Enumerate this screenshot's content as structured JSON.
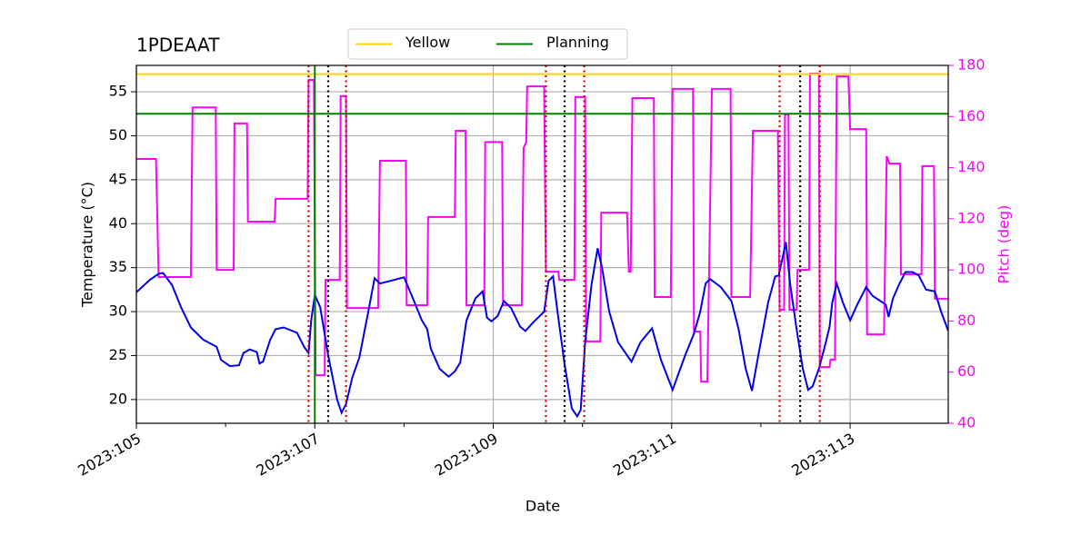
{
  "chart_data": {
    "type": "line",
    "title": "1PDEAAT",
    "xlabel": "Date",
    "ylabel": "Temperature (°C)",
    "y2label": "Pitch (deg)",
    "xlim": [
      105,
      114.1
    ],
    "xticks": [
      {
        "value": 105,
        "label": "2023:105"
      },
      {
        "value": 107,
        "label": "2023:107"
      },
      {
        "value": 109,
        "label": "2023:109"
      },
      {
        "value": 111,
        "label": "2023:111"
      },
      {
        "value": 113,
        "label": "2023:113"
      }
    ],
    "xminorticks": [
      106,
      108,
      110,
      112
    ],
    "ylim": [
      17.3,
      58
    ],
    "yticks": [
      20,
      25,
      30,
      35,
      40,
      45,
      50,
      55
    ],
    "y2lim": [
      40,
      180
    ],
    "y2ticks": [
      40,
      60,
      80,
      100,
      120,
      140,
      160,
      180
    ],
    "y2color": "#ff00ff",
    "grid": true,
    "legend": "upper center",
    "hlines": [
      {
        "name": "Yellow",
        "color": "#ffd700",
        "y": 57
      },
      {
        "name": "Planning",
        "color": "#008000",
        "y": 52.5
      }
    ],
    "vlines": [
      {
        "x": 106.93,
        "color": "#e00000",
        "style": "dotted"
      },
      {
        "x": 107.35,
        "color": "#e00000",
        "style": "dotted"
      },
      {
        "x": 109.59,
        "color": "#e00000",
        "style": "dotted"
      },
      {
        "x": 110.02,
        "color": "#e00000",
        "style": "dotted"
      },
      {
        "x": 112.21,
        "color": "#e00000",
        "style": "dotted"
      },
      {
        "x": 112.66,
        "color": "#e00000",
        "style": "dotted"
      },
      {
        "x": 107.15,
        "color": "#000000",
        "style": "dotted"
      },
      {
        "x": 109.8,
        "color": "#000000",
        "style": "dotted"
      },
      {
        "x": 112.44,
        "color": "#000000",
        "style": "dotted"
      },
      {
        "x": 107.0,
        "color": "#008000",
        "style": "solid"
      }
    ],
    "series": [
      {
        "color": "#ff00ff",
        "axis": "y2",
        "x": [
          105.0,
          105.22,
          105.25,
          105.61,
          105.63,
          105.89,
          105.9,
          106.09,
          106.1,
          106.24,
          106.25,
          106.55,
          106.56,
          106.92,
          106.93,
          106.99,
          107.01,
          107.11,
          107.12,
          107.28,
          107.29,
          107.35,
          107.36,
          107.71,
          107.73,
          108.02,
          108.03,
          108.26,
          108.27,
          108.57,
          108.58,
          108.69,
          108.7,
          108.9,
          108.91,
          109.1,
          109.11,
          109.32,
          109.34,
          109.37,
          109.38,
          109.57,
          109.59,
          109.73,
          109.74,
          109.91,
          109.92,
          110.03,
          110.04,
          110.2,
          110.21,
          110.5,
          110.52,
          110.54,
          110.56,
          110.8,
          110.81,
          110.99,
          111.01,
          111.24,
          111.25,
          111.32,
          111.33,
          111.4,
          111.42,
          111.45,
          111.66,
          111.67,
          111.88,
          111.91,
          112.19,
          112.21,
          112.26,
          112.27,
          112.31,
          112.32,
          112.4,
          112.41,
          112.54,
          112.55,
          112.65,
          112.66,
          112.77,
          112.78,
          112.83,
          112.85,
          112.98,
          113.0,
          113.18,
          113.19,
          113.38,
          113.41,
          113.44,
          113.56,
          113.57,
          113.8,
          113.81,
          113.94,
          113.95,
          114.1
        ],
        "values": [
          143.4,
          143.4,
          97.2,
          97.2,
          163.6,
          163.6,
          100,
          100,
          157.3,
          157.3,
          118.9,
          118.9,
          127.8,
          127.8,
          174.3,
          174.3,
          58.8,
          58.8,
          96.1,
          96.1,
          168,
          168,
          85.1,
          85.1,
          142.7,
          142.7,
          86.2,
          86.2,
          120.7,
          120.7,
          154.4,
          154.4,
          86.2,
          86.2,
          150,
          150,
          86.2,
          86.2,
          147.7,
          150,
          171.8,
          171.8,
          99.3,
          99.3,
          96.1,
          96.1,
          167.6,
          167.6,
          72,
          72,
          122.4,
          122.4,
          99.3,
          99.3,
          167.2,
          167.2,
          89.4,
          89.4,
          170.8,
          170.8,
          75.9,
          75.9,
          56.3,
          56.3,
          100,
          170.8,
          170.8,
          89.4,
          89.4,
          154.4,
          154.4,
          84.4,
          84.4,
          160.8,
          160.8,
          84.4,
          84.4,
          100,
          100,
          176.8,
          176.8,
          62,
          62,
          64.9,
          64.9,
          175.7,
          175.7,
          155.1,
          155.1,
          74.8,
          74.8,
          144.5,
          141.6,
          141.6,
          98.3,
          98.3,
          140.6,
          140.6,
          88.7,
          88.7
        ]
      },
      {
        "color": "#0000ee",
        "x": [
          105.0,
          105.15,
          105.25,
          105.3,
          105.4,
          105.5,
          105.61,
          105.75,
          105.9,
          105.95,
          106.05,
          106.15,
          106.2,
          106.27,
          106.35,
          106.38,
          106.42,
          106.5,
          106.56,
          106.65,
          106.8,
          106.88,
          106.93,
          106.96,
          107.0,
          107.06,
          107.15,
          107.25,
          107.3,
          107.35,
          107.42,
          107.5,
          107.6,
          107.67,
          107.73,
          107.85,
          108.0,
          108.1,
          108.2,
          108.26,
          108.3,
          108.4,
          108.5,
          108.57,
          108.63,
          108.7,
          108.8,
          108.88,
          108.93,
          108.98,
          109.05,
          109.12,
          109.2,
          109.3,
          109.36,
          109.45,
          109.57,
          109.62,
          109.67,
          109.72,
          109.8,
          109.88,
          109.94,
          109.98,
          110.03,
          110.1,
          110.17,
          110.22,
          110.3,
          110.4,
          110.55,
          110.65,
          110.78,
          110.88,
          111.01,
          111.15,
          111.25,
          111.32,
          111.38,
          111.43,
          111.55,
          111.67,
          111.75,
          111.83,
          111.9,
          111.97,
          112.08,
          112.16,
          112.2,
          112.25,
          112.28,
          112.33,
          112.4,
          112.47,
          112.53,
          112.58,
          112.65,
          112.72,
          112.77,
          112.8,
          112.85,
          112.92,
          113.0,
          113.08,
          113.18,
          113.25,
          113.4,
          113.43,
          113.48,
          113.55,
          113.62,
          113.7,
          113.77,
          113.85,
          113.95,
          114.02,
          114.1
        ],
        "values": [
          32.2,
          33.6,
          34.3,
          34.4,
          33.0,
          30.5,
          28.2,
          26.8,
          26.0,
          24.5,
          23.8,
          23.9,
          25.3,
          25.7,
          25.4,
          24.1,
          24.3,
          26.8,
          28.0,
          28.2,
          27.6,
          26.0,
          25.3,
          29,
          31.9,
          30.5,
          25,
          20,
          18.5,
          19.5,
          22.5,
          24.8,
          30,
          33.8,
          33.2,
          33.5,
          33.9,
          31.5,
          29,
          28.0,
          25.8,
          23.5,
          22.6,
          23.2,
          24.2,
          29,
          31.5,
          32.3,
          29.3,
          28.9,
          29.5,
          31.2,
          30.4,
          28.3,
          27.8,
          28.8,
          30.0,
          33.5,
          34.0,
          30,
          24,
          19,
          18.1,
          18.8,
          26.5,
          33,
          37.2,
          35,
          30,
          26.5,
          24.3,
          26.5,
          28.1,
          24.5,
          21.1,
          25,
          27.5,
          30.0,
          33.2,
          33.7,
          32.8,
          31.2,
          28,
          23.5,
          21.0,
          25,
          31,
          34.0,
          34.1,
          36.5,
          37.9,
          33,
          28,
          23.5,
          21.1,
          21.5,
          23.5,
          26.2,
          28.3,
          31,
          33.2,
          31,
          29.0,
          30.8,
          32.8,
          31.8,
          30.8,
          29.4,
          31.5,
          33.1,
          34.5,
          34.5,
          34.1,
          32.5,
          32.3,
          30,
          27.8
        ]
      }
    ]
  }
}
